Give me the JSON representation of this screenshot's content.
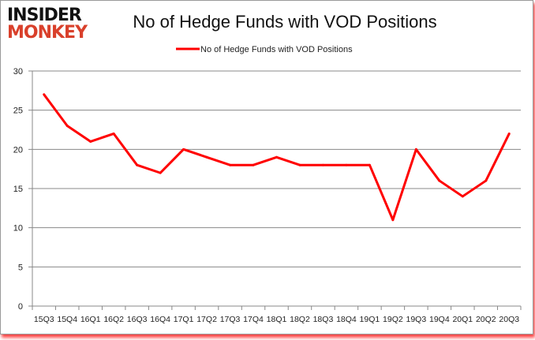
{
  "logo": {
    "line1": "INSIDER",
    "line2": "MONKEY"
  },
  "chart_data": {
    "type": "line",
    "title": "No of Hedge Funds with VOD Positions",
    "categories": [
      "15Q3",
      "15Q4",
      "16Q1",
      "16Q2",
      "16Q3",
      "16Q4",
      "17Q1",
      "17Q2",
      "17Q3",
      "17Q4",
      "18Q1",
      "18Q2",
      "18Q3",
      "18Q4",
      "19Q1",
      "19Q2",
      "19Q3",
      "19Q4",
      "20Q1",
      "20Q2",
      "20Q3"
    ],
    "series": [
      {
        "name": "No of Hedge Funds with VOD Positions",
        "color": "#ff0000",
        "values": [
          27,
          23,
          21,
          22,
          18,
          17,
          20,
          19,
          18,
          18,
          19,
          18,
          18,
          18,
          18,
          11,
          20,
          16,
          14,
          16,
          22
        ]
      }
    ],
    "ylim": [
      0,
      30
    ],
    "yticks": [
      0,
      5,
      10,
      15,
      20,
      25,
      30
    ],
    "grid": true,
    "legend": "top"
  }
}
